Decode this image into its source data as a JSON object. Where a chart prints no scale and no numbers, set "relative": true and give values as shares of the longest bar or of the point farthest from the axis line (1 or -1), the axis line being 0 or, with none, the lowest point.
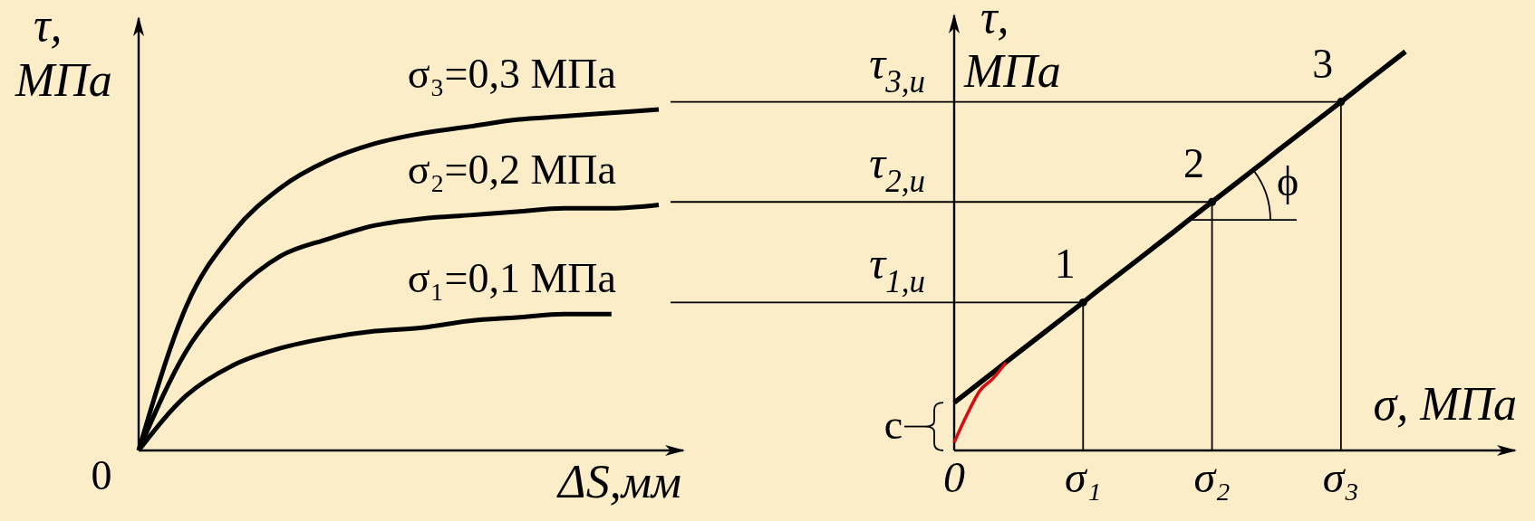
{
  "chart_data": [
    {
      "type": "line",
      "relative": true,
      "ylabel": "τ,\nМПа",
      "xlabel": "ΔS,мм",
      "tick_labels": false,
      "categories": [
        null,
        null,
        null,
        null,
        null,
        null,
        null,
        null,
        null,
        null,
        null,
        null
      ],
      "series": [
        {
          "name": "σ₁=0,1 МПа",
          "color": "#000000",
          "values": [
            0,
            0.16,
            0.25,
            0.3,
            0.33,
            0.35,
            0.36,
            0.38,
            0.39,
            0.4,
            0.4,
            null
          ]
        },
        {
          "name": "σ₂=0,2 МПа",
          "color": "#000000",
          "values": [
            0,
            0.29,
            0.46,
            0.57,
            0.62,
            0.66,
            0.68,
            0.69,
            0.7,
            0.71,
            0.71,
            0.72
          ]
        },
        {
          "name": "σ₃=0,3 МПа",
          "color": "#000000",
          "values": [
            0,
            0.42,
            0.64,
            0.77,
            0.85,
            0.9,
            0.93,
            0.95,
            0.97,
            0.98,
            0.99,
            1.0
          ]
        }
      ],
      "annotations": [
        "0"
      ]
    },
    {
      "type": "line",
      "relative": true,
      "ylabel": "τ,\nМПа",
      "xlabel": "σ, МПа",
      "tick_labels": "x",
      "categories": [
        "0",
        null,
        null,
        null,
        null,
        null,
        null,
        null,
        null,
        null,
        "σ₁",
        null,
        null,
        null,
        null,
        null,
        null,
        null,
        null,
        null,
        "σ₂",
        null,
        null,
        null,
        null,
        null,
        null,
        null,
        null,
        null,
        "σ₃",
        null,
        null,
        null,
        null,
        null
      ],
      "series": [
        {
          "color": "#000000",
          "values": [
            0.12,
            0.145,
            0.17,
            0.195,
            0.221,
            0.246,
            0.271,
            0.296,
            0.321,
            0.346,
            0.371,
            0.397,
            0.422,
            0.447,
            0.472,
            0.497,
            0.522,
            0.547,
            0.573,
            0.598,
            0.623,
            0.648,
            0.673,
            0.698,
            0.723,
            0.749,
            0.774,
            0.799,
            0.824,
            0.849,
            0.874,
            0.899,
            0.925,
            0.95,
            0.975,
            1
          ]
        },
        {
          "type": "lollipop",
          "marker": "circle",
          "color": "#000000",
          "values": [
            null,
            null,
            null,
            null,
            null,
            null,
            null,
            null,
            null,
            null,
            0.371,
            null,
            null,
            null,
            null,
            null,
            null,
            null,
            null,
            null,
            0.623,
            null,
            null,
            null,
            null,
            null,
            null,
            null,
            null,
            null,
            0.874,
            null,
            null,
            null,
            null,
            null
          ]
        },
        {
          "color": "#d40f0f",
          "values": [
            0.02,
            0.09,
            0.15,
            0.18,
            0.22,
            null,
            null,
            null,
            null,
            null,
            null,
            null,
            null,
            null,
            null,
            null,
            null,
            null,
            null,
            null,
            null,
            null,
            null,
            null,
            null,
            null,
            null,
            null,
            null,
            null,
            null,
            null,
            null,
            null,
            null,
            null
          ]
        }
      ],
      "ref_lines": [
        {
          "axis": "y",
          "value": 0.874,
          "label": "τ$_{3,u}$"
        },
        {
          "axis": "y",
          "value": 0.623,
          "label": "τ$_{2,u}$"
        },
        {
          "axis": "y",
          "value": 0.371,
          "label": "τ$_{1,u}$"
        }
      ],
      "annotations": [
        {
          "text": "1",
          "x": "σ₁",
          "y": 0.371
        },
        {
          "text": "2",
          "x": "σ₂",
          "y": 0.623
        },
        {
          "text": "3",
          "x": "σ₃",
          "y": 0.874
        },
        "ϕ",
        "c"
      ]
    }
  ]
}
